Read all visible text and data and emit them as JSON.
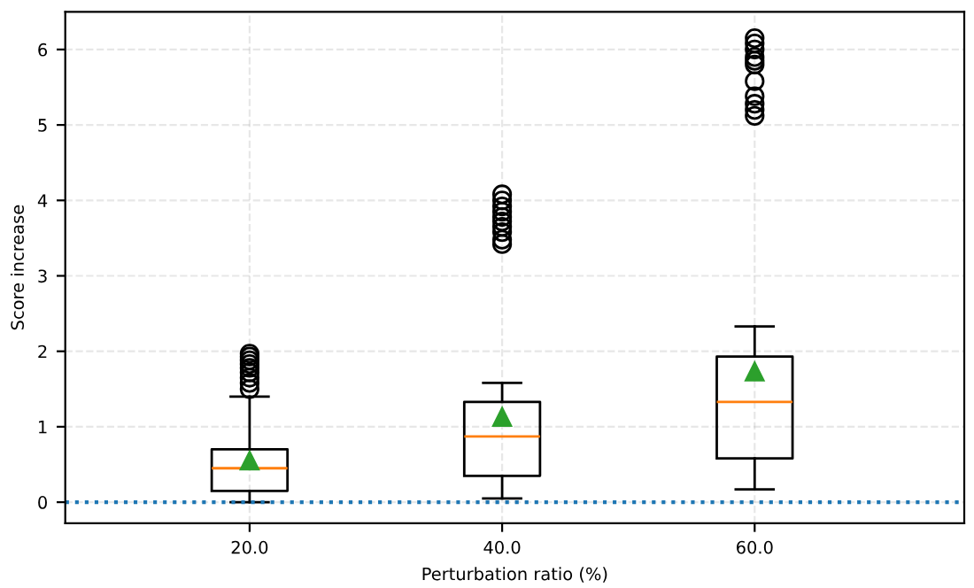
{
  "chart_data": {
    "type": "box",
    "xlabel": "Perturbation ratio (%)",
    "ylabel": "Score increase",
    "categories": [
      "20.0",
      "40.0",
      "60.0"
    ],
    "boxes": [
      {
        "low": 0.0,
        "q1": 0.15,
        "median": 0.45,
        "q3": 0.7,
        "high": 1.4,
        "mean": 0.55,
        "outliers": [
          1.5,
          1.58,
          1.65,
          1.72,
          1.78,
          1.83,
          1.88,
          1.93,
          1.97
        ]
      },
      {
        "low": 0.05,
        "q1": 0.35,
        "median": 0.87,
        "q3": 1.33,
        "high": 1.58,
        "mean": 1.13,
        "outliers": [
          3.42,
          3.48,
          3.58,
          3.65,
          3.72,
          3.78,
          3.85,
          3.92,
          4.0,
          4.08
        ]
      },
      {
        "low": 0.17,
        "q1": 0.58,
        "median": 1.33,
        "q3": 1.93,
        "high": 2.33,
        "mean": 1.73,
        "outliers": [
          5.12,
          5.2,
          5.28,
          5.38,
          5.58,
          5.8,
          5.85,
          5.9,
          6.0,
          6.08,
          6.15
        ]
      }
    ],
    "ylim": [
      -0.28,
      6.5
    ],
    "yticks": [
      0,
      1,
      2,
      3,
      4,
      5,
      6
    ],
    "grid": true,
    "ref_lines": [
      {
        "axis": "y",
        "value": 0,
        "color": "#1f77b4",
        "line_style": "dotted"
      }
    ]
  }
}
